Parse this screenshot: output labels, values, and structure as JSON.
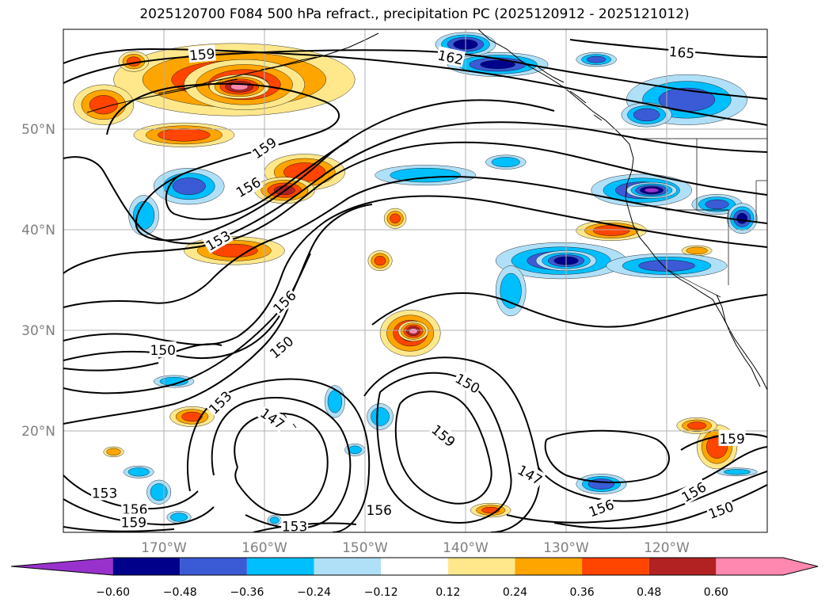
{
  "title": "2025120700 F084 500 hPa refract., precipitation PC (2025120912 - 2025121012)",
  "lon_ticks": [
    "170°W",
    "160°W",
    "150°W",
    "140°W",
    "130°W",
    "120°W"
  ],
  "lat_ticks": [
    "50°N",
    "40°N",
    "30°N",
    "20°N"
  ],
  "colorbar": {
    "colors": [
      "#9932cc",
      "#00008b",
      "#3b5bd6",
      "#00bfff",
      "#b0e0f8",
      "#ffffff",
      "#ffe88c",
      "#ffa500",
      "#ff4500",
      "#b22222",
      "#ff88b0"
    ],
    "labels": [
      "−0.60",
      "−0.48",
      "−0.36",
      "−0.24",
      "−0.12",
      "0.12",
      "0.24",
      "0.36",
      "0.48",
      "0.60"
    ]
  },
  "contour_labels": [
    {
      "text": "162",
      "lon": -141.5,
      "lat": 57.2,
      "rot": 12
    },
    {
      "text": "165",
      "lon": -118.5,
      "lat": 57.7,
      "rot": 5
    },
    {
      "text": "159",
      "lon": -166.2,
      "lat": 57.5,
      "rot": -5
    },
    {
      "text": "159",
      "lon": -160.0,
      "lat": 48.2,
      "rot": -35
    },
    {
      "text": "156",
      "lon": -161.6,
      "lat": 44.3,
      "rot": -30
    },
    {
      "text": "153",
      "lon": -164.6,
      "lat": 39.0,
      "rot": -30
    },
    {
      "text": "156",
      "lon": -158.0,
      "lat": 32.9,
      "rot": -45
    },
    {
      "text": "150",
      "lon": -170.1,
      "lat": 28.1,
      "rot": 0
    },
    {
      "text": "150",
      "lon": -158.3,
      "lat": 28.4,
      "rot": -40
    },
    {
      "text": "153",
      "lon": -164.4,
      "lat": 22.9,
      "rot": -45
    },
    {
      "text": "147",
      "lon": -159.2,
      "lat": 21.3,
      "rot": 35
    },
    {
      "text": "150",
      "lon": -139.8,
      "lat": 24.8,
      "rot": 30
    },
    {
      "text": "159",
      "lon": -142.2,
      "lat": 19.6,
      "rot": 40
    },
    {
      "text": "147",
      "lon": -133.6,
      "lat": 15.7,
      "rot": 30
    },
    {
      "text": "159",
      "lon": -113.5,
      "lat": 19.3,
      "rot": 0
    },
    {
      "text": "156",
      "lon": -126.5,
      "lat": 12.4,
      "rot": -20
    },
    {
      "text": "156",
      "lon": -117.3,
      "lat": 14.0,
      "rot": -30
    },
    {
      "text": "150",
      "lon": -114.6,
      "lat": 12.2,
      "rot": -20
    },
    {
      "text": "153",
      "lon": -175.9,
      "lat": 13.9,
      "rot": 0
    },
    {
      "text": "156",
      "lon": -172.9,
      "lat": 12.3,
      "rot": 0
    },
    {
      "text": "159",
      "lon": -173.0,
      "lat": 11.0,
      "rot": 0
    },
    {
      "text": "153",
      "lon": -157.0,
      "lat": 10.6,
      "rot": 0
    },
    {
      "text": "156",
      "lon": -148.6,
      "lat": 12.2,
      "rot": 0
    }
  ],
  "precip_blobs": [
    {
      "lon": -163.0,
      "lat": 55.0,
      "rx": 12,
      "ry": 3.6,
      "v": 0.45
    },
    {
      "lon": -162.0,
      "lat": 54.5,
      "rx": 6,
      "ry": 2.5,
      "v": 0.55
    },
    {
      "lon": -162.5,
      "lat": 54.3,
      "rx": 3,
      "ry": 1.2,
      "v": 0.62
    },
    {
      "lon": -176.0,
      "lat": 52.5,
      "rx": 3,
      "ry": 2.0,
      "v": 0.4
    },
    {
      "lon": -173.0,
      "lat": 56.8,
      "rx": 1.5,
      "ry": 1.0,
      "v": 0.4
    },
    {
      "lon": -168.0,
      "lat": 49.5,
      "rx": 5,
      "ry": 1.2,
      "v": 0.45
    },
    {
      "lon": -156.0,
      "lat": 45.8,
      "rx": 4,
      "ry": 1.8,
      "v": 0.45
    },
    {
      "lon": -158.0,
      "lat": 44.0,
      "rx": 3,
      "ry": 1.3,
      "v": 0.5
    },
    {
      "lon": -163.0,
      "lat": 38.0,
      "rx": 5,
      "ry": 1.4,
      "v": 0.4
    },
    {
      "lon": -145.5,
      "lat": 29.8,
      "rx": 3,
      "ry": 2.3,
      "v": 0.5
    },
    {
      "lon": -145.2,
      "lat": 30.0,
      "rx": 1.5,
      "ry": 1.0,
      "v": 0.62
    },
    {
      "lon": -148.5,
      "lat": 37.0,
      "rx": 1.2,
      "ry": 1.0,
      "v": 0.4
    },
    {
      "lon": -147.0,
      "lat": 41.2,
      "rx": 1.1,
      "ry": 1.0,
      "v": 0.4
    },
    {
      "lon": -125.5,
      "lat": 40.0,
      "rx": 3.5,
      "ry": 1.0,
      "v": 0.45
    },
    {
      "lon": -115.0,
      "lat": 18.5,
      "rx": 2,
      "ry": 2.2,
      "v": 0.45
    },
    {
      "lon": -117.0,
      "lat": 20.6,
      "rx": 2,
      "ry": 0.8,
      "v": 0.4
    },
    {
      "lon": -137.5,
      "lat": 12.2,
      "rx": 2,
      "ry": 0.7,
      "v": 0.38
    },
    {
      "lon": -167.2,
      "lat": 21.5,
      "rx": 2.2,
      "ry": 1.0,
      "v": 0.4
    },
    {
      "lon": -175.0,
      "lat": 18.0,
      "rx": 1.0,
      "ry": 0.5,
      "v": 0.35
    },
    {
      "lon": -117.0,
      "lat": 38.0,
      "rx": 1.5,
      "ry": 0.5,
      "v": 0.35
    },
    {
      "lon": -136.8,
      "lat": 56.5,
      "rx": 5,
      "ry": 1.2,
      "v": -0.5
    },
    {
      "lon": -140.0,
      "lat": 58.5,
      "rx": 3,
      "ry": 1.2,
      "v": -0.55
    },
    {
      "lon": -127.0,
      "lat": 57.0,
      "rx": 2,
      "ry": 0.7,
      "v": -0.4
    },
    {
      "lon": -118.0,
      "lat": 53.0,
      "rx": 6,
      "ry": 2.5,
      "v": -0.4
    },
    {
      "lon": -122.0,
      "lat": 51.5,
      "rx": 2.5,
      "ry": 1.2,
      "v": -0.45
    },
    {
      "lon": -122.5,
      "lat": 44.0,
      "rx": 5,
      "ry": 1.6,
      "v": -0.45
    },
    {
      "lon": -121.5,
      "lat": 44.0,
      "rx": 2.5,
      "ry": 0.8,
      "v": -0.62
    },
    {
      "lon": -115.0,
      "lat": 42.6,
      "rx": 2.5,
      "ry": 1.0,
      "v": -0.4
    },
    {
      "lon": -112.5,
      "lat": 41.2,
      "rx": 1.5,
      "ry": 1.5,
      "v": -0.5
    },
    {
      "lon": -130.5,
      "lat": 37.0,
      "rx": 6.5,
      "ry": 1.8,
      "v": -0.45
    },
    {
      "lon": -130.0,
      "lat": 37.0,
      "rx": 3,
      "ry": 1.0,
      "v": -0.55
    },
    {
      "lon": -120.0,
      "lat": 36.5,
      "rx": 6,
      "ry": 1.2,
      "v": -0.4
    },
    {
      "lon": -135.5,
      "lat": 34.0,
      "rx": 1.5,
      "ry": 2.5,
      "v": -0.35
    },
    {
      "lon": -144.0,
      "lat": 45.5,
      "rx": 5,
      "ry": 1.0,
      "v": -0.35
    },
    {
      "lon": -136.0,
      "lat": 46.8,
      "rx": 2.0,
      "ry": 0.7,
      "v": -0.35
    },
    {
      "lon": -167.5,
      "lat": 44.4,
      "rx": 3.5,
      "ry": 1.8,
      "v": -0.4
    },
    {
      "lon": -172.0,
      "lat": 41.5,
      "rx": 1.5,
      "ry": 2.0,
      "v": -0.35
    },
    {
      "lon": -169.0,
      "lat": 25.0,
      "rx": 2.0,
      "ry": 0.6,
      "v": -0.35
    },
    {
      "lon": -153.0,
      "lat": 23.0,
      "rx": 1.0,
      "ry": 1.6,
      "v": -0.35
    },
    {
      "lon": -148.5,
      "lat": 21.5,
      "rx": 1.3,
      "ry": 1.3,
      "v": -0.35
    },
    {
      "lon": -151.0,
      "lat": 18.2,
      "rx": 1.0,
      "ry": 0.6,
      "v": -0.3
    },
    {
      "lon": -126.5,
      "lat": 14.8,
      "rx": 2.5,
      "ry": 1.0,
      "v": -0.45
    },
    {
      "lon": -172.5,
      "lat": 16.0,
      "rx": 1.5,
      "ry": 0.6,
      "v": -0.35
    },
    {
      "lon": -170.5,
      "lat": 14.0,
      "rx": 1.2,
      "ry": 1.2,
      "v": -0.35
    },
    {
      "lon": -168.5,
      "lat": 11.5,
      "rx": 1.2,
      "ry": 0.6,
      "v": -0.35
    },
    {
      "lon": -159.0,
      "lat": 11.2,
      "rx": 0.7,
      "ry": 0.5,
      "v": -0.3
    },
    {
      "lon": -113.0,
      "lat": 16.0,
      "rx": 2.0,
      "ry": 0.4,
      "v": -0.3
    }
  ]
}
